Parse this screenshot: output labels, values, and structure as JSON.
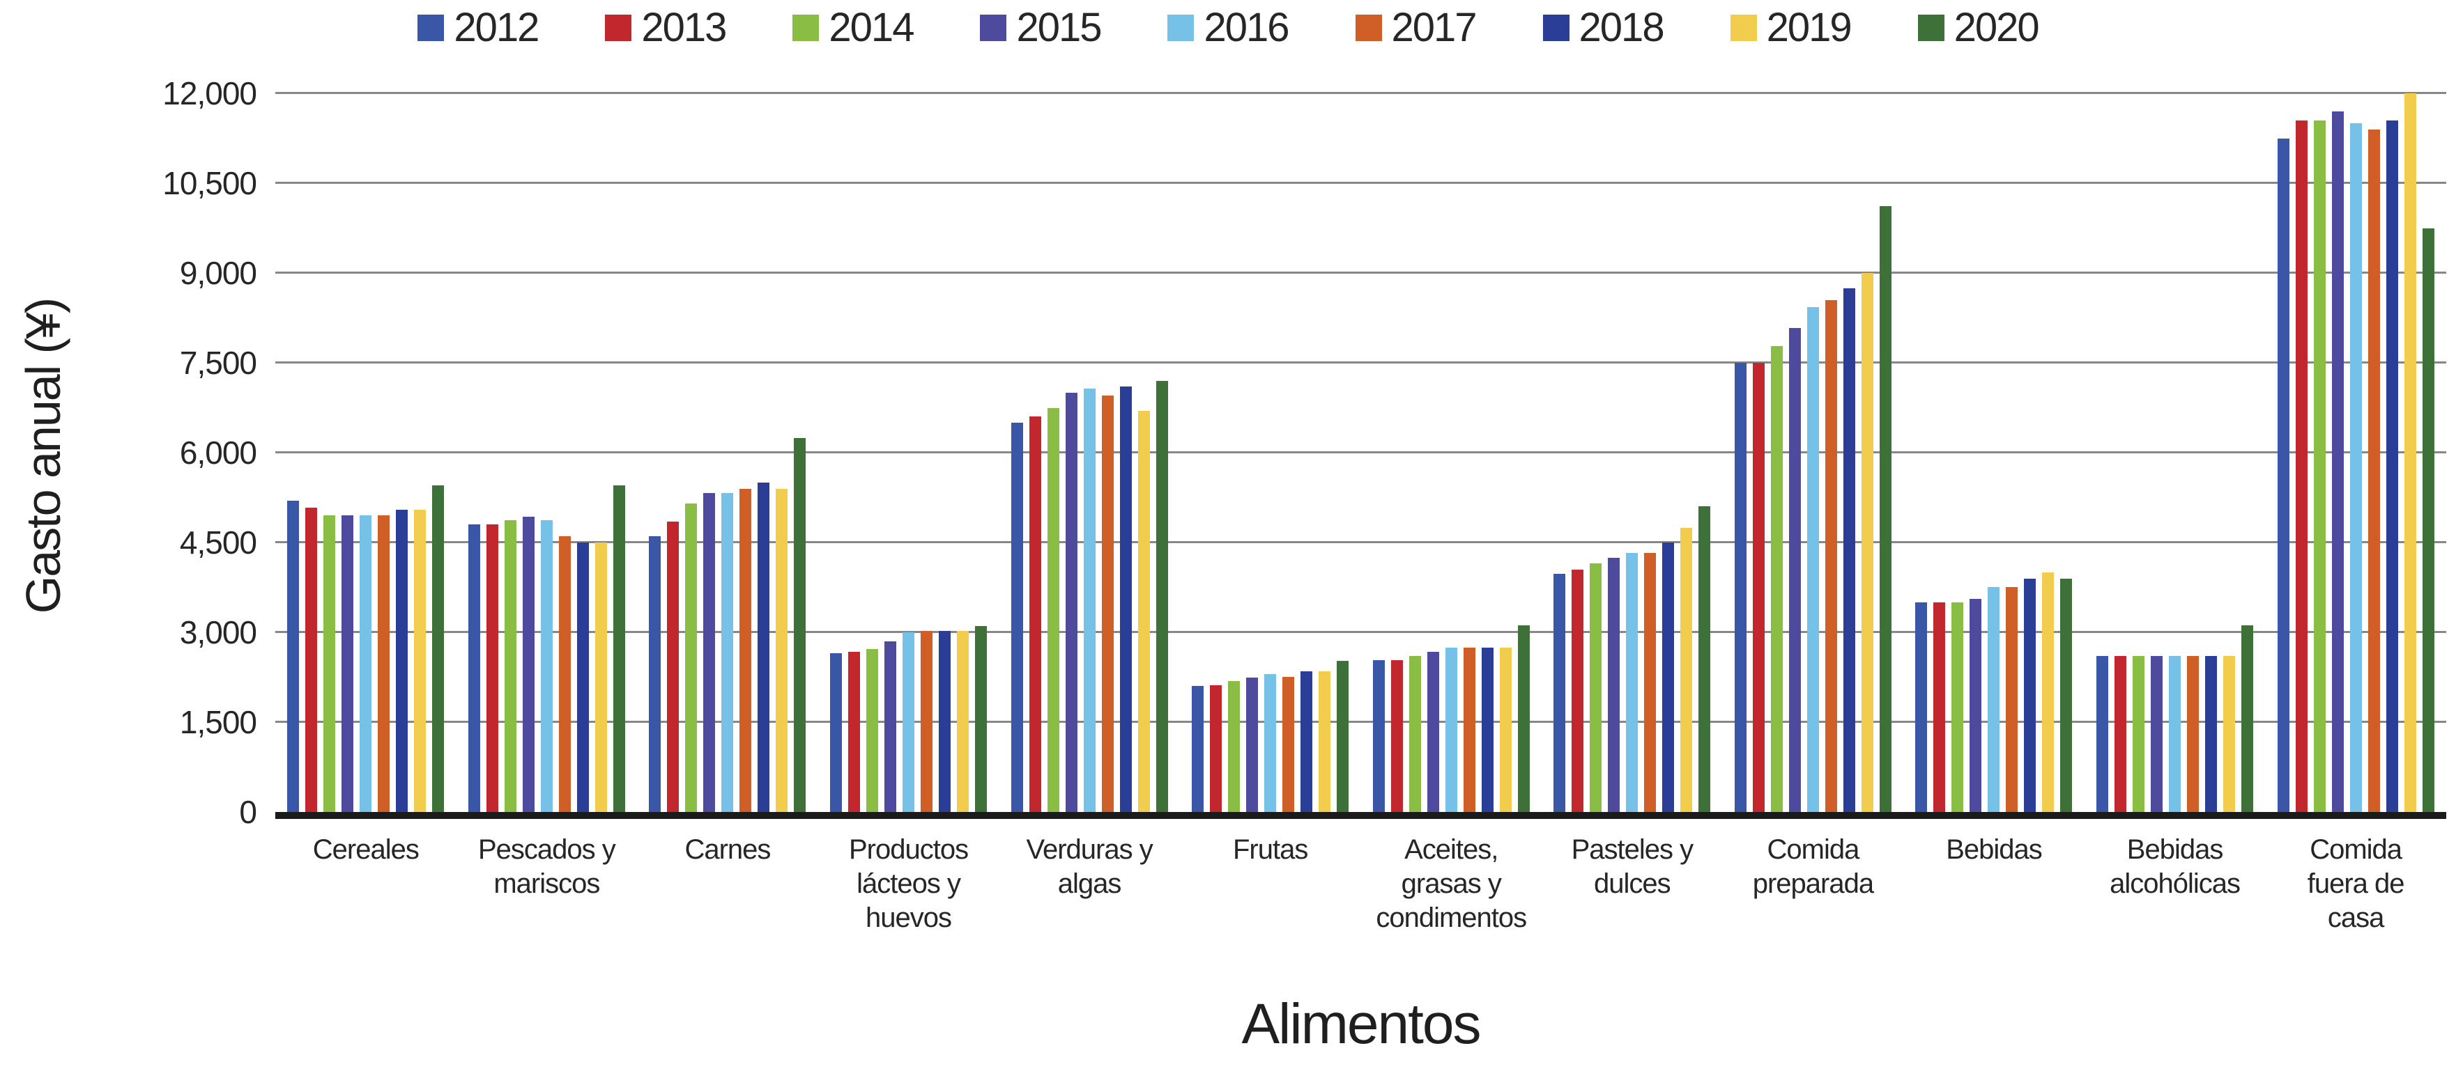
{
  "chart_data": {
    "type": "bar",
    "title": "",
    "xlabel": "Alimentos",
    "ylabel": "Gasto anual (¥)",
    "ylim": [
      0,
      12000
    ],
    "ytick_step": 1500,
    "ytick_labels": [
      "0",
      "1,500",
      "3,000",
      "4,500",
      "6,000",
      "7,500",
      "9,000",
      "10,500",
      "12,000"
    ],
    "grid": true,
    "legend_position": "top",
    "categories": [
      "Cereales",
      "Pescados y mariscos",
      "Carnes",
      "Productos lácteos y huevos",
      "Verduras y algas",
      "Frutas",
      "Aceites, grasas y condimentos",
      "Pasteles y dulces",
      "Comida preparada",
      "Bebidas",
      "Bebidas alcohólicas",
      "Comida fuera de casa"
    ],
    "category_label_lines": [
      [
        "Cereales"
      ],
      [
        "Pescados y",
        "mariscos"
      ],
      [
        "Carnes"
      ],
      [
        "Productos",
        "lácteos y",
        "huevos"
      ],
      [
        "Verduras y",
        "algas"
      ],
      [
        "Frutas"
      ],
      [
        "Aceites,",
        "grasas y",
        "condimentos"
      ],
      [
        "Pasteles y",
        "dulces"
      ],
      [
        "Comida",
        "preparada"
      ],
      [
        "Bebidas"
      ],
      [
        "Bebidas",
        "alcohólicas"
      ],
      [
        "Comida",
        "fuera de",
        "casa"
      ]
    ],
    "series": [
      {
        "name": "2012",
        "color": "#3A57A7",
        "values": [
          5200,
          4800,
          4600,
          2650,
          6500,
          2100,
          2540,
          3980,
          7500,
          3500,
          2600,
          11250
        ]
      },
      {
        "name": "2013",
        "color": "#C1272D",
        "values": [
          5080,
          4800,
          4850,
          2670,
          6600,
          2120,
          2540,
          4050,
          7500,
          3500,
          2600,
          11550
        ]
      },
      {
        "name": "2014",
        "color": "#8ABD44",
        "values": [
          4950,
          4870,
          5150,
          2720,
          6750,
          2190,
          2600,
          4150,
          7780,
          3500,
          2600,
          11550
        ]
      },
      {
        "name": "2015",
        "color": "#4E4A9D",
        "values": [
          4950,
          4930,
          5330,
          2850,
          7000,
          2250,
          2680,
          4250,
          8080,
          3560,
          2600,
          11700
        ]
      },
      {
        "name": "2016",
        "color": "#76C1E8",
        "values": [
          4950,
          4870,
          5330,
          3000,
          7070,
          2300,
          2740,
          4320,
          8430,
          3760,
          2600,
          11500
        ]
      },
      {
        "name": "2017",
        "color": "#D05F27",
        "values": [
          4950,
          4600,
          5400,
          3020,
          6950,
          2260,
          2750,
          4320,
          8550,
          3760,
          2600,
          11400
        ]
      },
      {
        "name": "2018",
        "color": "#2B3E97",
        "values": [
          5050,
          4500,
          5500,
          3020,
          7100,
          2350,
          2750,
          4500,
          8750,
          3890,
          2600,
          11550
        ]
      },
      {
        "name": "2019",
        "color": "#F2CD4D",
        "values": [
          5050,
          4500,
          5400,
          3020,
          6700,
          2350,
          2750,
          4750,
          9000,
          4000,
          2600,
          12000
        ]
      },
      {
        "name": "2020",
        "color": "#3E7138",
        "values": [
          5450,
          5450,
          6250,
          3100,
          7200,
          2520,
          3120,
          5100,
          10120,
          3890,
          3120,
          9750
        ]
      }
    ]
  }
}
